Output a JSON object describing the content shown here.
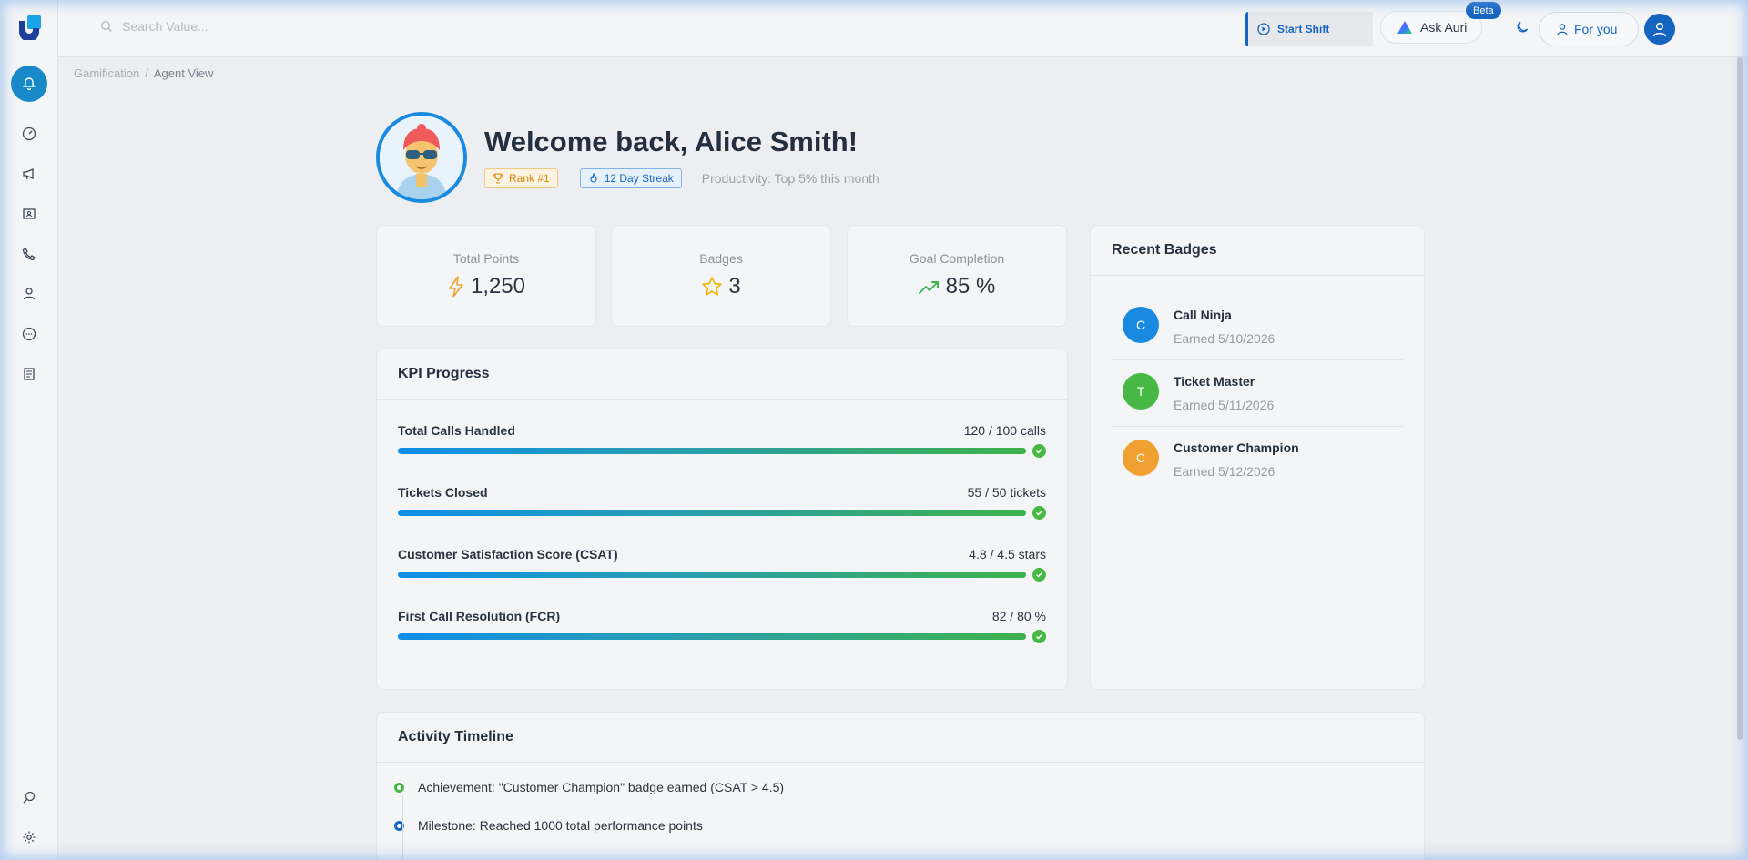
{
  "header": {
    "search_placeholder": "Search Value...",
    "start_shift": "Start Shift",
    "ask_auri": "Ask Auri",
    "beta": "Beta",
    "for_you": "For you"
  },
  "breadcrumb": {
    "parent": "Gamification",
    "separator": "/",
    "current": "Agent View"
  },
  "profile": {
    "welcome": "Welcome back, Alice Smith!",
    "rank": "Rank #1",
    "streak": "12 Day Streak",
    "productivity": "Productivity: Top 5% this month"
  },
  "stats": [
    {
      "title": "Total Points",
      "value": "1,250",
      "icon": "lightning-icon"
    },
    {
      "title": "Badges",
      "value": "3",
      "icon": "star-icon"
    },
    {
      "title": "Goal Completion",
      "value": "85 %",
      "icon": "trend-up-icon"
    }
  ],
  "kpi": {
    "title": "KPI Progress",
    "items": [
      {
        "label": "Total Calls Handled",
        "value": "120 / 100 calls",
        "progress": 1.0
      },
      {
        "label": "Tickets Closed",
        "value": "55 / 50 tickets",
        "progress": 1.0
      },
      {
        "label": "Customer Satisfaction Score (CSAT)",
        "value": "4.8 / 4.5 stars",
        "progress": 1.0
      },
      {
        "label": "First Call Resolution (FCR)",
        "value": "82 / 80 %",
        "progress": 1.0
      }
    ]
  },
  "recent_badges": {
    "title": "Recent Badges",
    "items": [
      {
        "initial": "C",
        "name": "Call Ninja",
        "earned": "Earned 5/10/2026",
        "color": "#1a8ae0"
      },
      {
        "initial": "T",
        "name": "Ticket Master",
        "earned": "Earned 5/11/2026",
        "color": "#46b843"
      },
      {
        "initial": "C",
        "name": "Customer Champion",
        "earned": "Earned 5/12/2026",
        "color": "#f0a030"
      }
    ]
  },
  "timeline": {
    "title": "Activity Timeline",
    "items": [
      {
        "text": "Achievement: \"Customer Champion\" badge earned (CSAT > 4.5)",
        "color": "#46b843"
      },
      {
        "text": "Milestone: Reached 1000 total performance points",
        "color": "#1565c0"
      }
    ]
  },
  "colors": {
    "primary": "#1565c0",
    "accent": "#1789c9",
    "success": "#46b843",
    "warning": "#f0a030"
  }
}
